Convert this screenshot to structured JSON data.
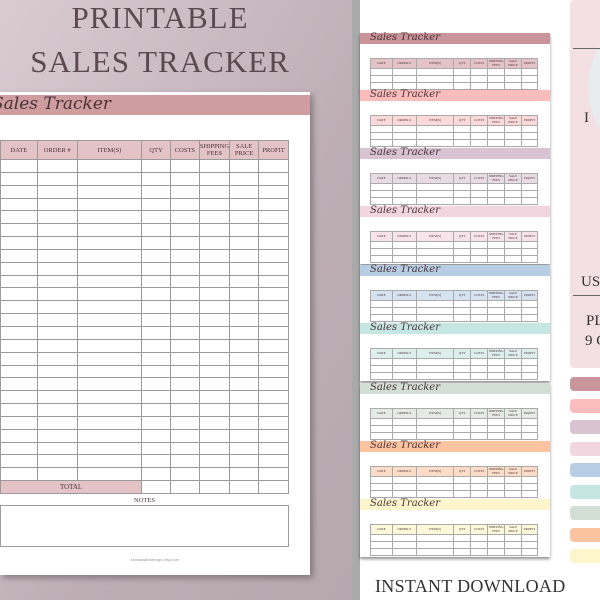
{
  "headline": {
    "line1": "PRINTABLE",
    "line2": "SALES TRACKER"
  },
  "main_sheet": {
    "title": "Sales Tracker",
    "columns": [
      "DATE",
      "ORDER #",
      "ITEM(S)",
      "QTY",
      "COSTS",
      "SHIPPING FEES",
      "SALE PRICE",
      "PROFIT"
    ],
    "total_label": "TOTAL",
    "notes_label": "NOTES",
    "footer": "sewadigitaldesign.etsy.com",
    "header_color": "#cf9ca0"
  },
  "variants": [
    {
      "title": "Sales Tracker",
      "color": "#c9949a",
      "head": "#e3c3c6"
    },
    {
      "title": "Sales Tracker",
      "color": "#fbbcbc",
      "head": "#fcd9d9"
    },
    {
      "title": "Sales Tracker",
      "color": "#d7c3d1",
      "head": "#e8dbe4"
    },
    {
      "title": "Sales Tracker",
      "color": "#f2d6df",
      "head": "#f6e4ea"
    },
    {
      "title": "Sales Tracker",
      "color": "#b7cde3",
      "head": "#d5e2ef"
    },
    {
      "title": "Sales Tracker",
      "color": "#c5e6e3",
      "head": "#dcefed"
    },
    {
      "title": "Sales Tracker",
      "color": "#d3dfd5",
      "head": "#e3ebe4"
    },
    {
      "title": "Sales Tracker",
      "color": "#fbc39f",
      "head": "#fcdcc7"
    },
    {
      "title": "Sales Tracker",
      "color": "#fdf5cc",
      "head": "#fdf7da"
    }
  ],
  "side": {
    "t1": "I",
    "t2": "US",
    "t3": "PL",
    "t4": "9 C"
  },
  "swatches": [
    "#c9949a",
    "#fbbcbc",
    "#d7c3d1",
    "#f2d6df",
    "#b7cde3",
    "#c5e6e3",
    "#d3dfd5",
    "#fbc39f",
    "#fdf5cc"
  ],
  "instant_download": "INSTANT DOWNLOAD"
}
